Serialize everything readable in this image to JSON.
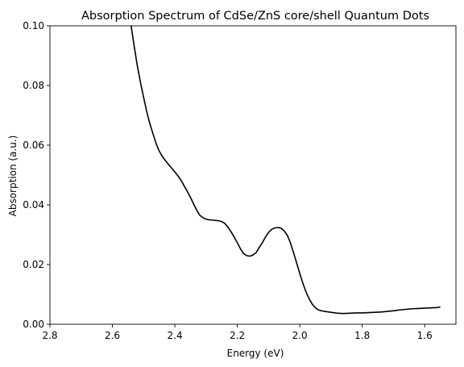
{
  "chart_data": {
    "type": "line",
    "title": "Absorption Spectrum of CdSe/ZnS core/shell Quantum Dots",
    "xlabel": "Energy (eV)",
    "ylabel": "Absorption (a.u.)",
    "xlim": [
      2.8,
      1.5
    ],
    "ylim": [
      0,
      0.1
    ],
    "x_reversed": true,
    "grid": false,
    "x_ticks": [
      2.8,
      2.6,
      2.4,
      2.2,
      2.0,
      1.8,
      1.6
    ],
    "x_tick_labels": [
      "2.8",
      "2.6",
      "2.4",
      "2.2",
      "2.0",
      "1.8",
      "1.6"
    ],
    "y_ticks": [
      0,
      0.02,
      0.04,
      0.06,
      0.08,
      0.1
    ],
    "y_tick_labels": [
      "0.00",
      "0.02",
      "0.04",
      "0.06",
      "0.08",
      "0.10"
    ],
    "line_color": "#000000",
    "series": [
      {
        "x": [
          2.54,
          2.53,
          2.52,
          2.51,
          2.5,
          2.49,
          2.48,
          2.47,
          2.46,
          2.45,
          2.44,
          2.43,
          2.42,
          2.41,
          2.4,
          2.39,
          2.38,
          2.37,
          2.36,
          2.35,
          2.34,
          2.33,
          2.32,
          2.31,
          2.3,
          2.29,
          2.28,
          2.27,
          2.26,
          2.25,
          2.24,
          2.23,
          2.22,
          2.21,
          2.2,
          2.19,
          2.18,
          2.17,
          2.16,
          2.15,
          2.14,
          2.13,
          2.12,
          2.11,
          2.1,
          2.09,
          2.08,
          2.07,
          2.06,
          2.05,
          2.04,
          2.03,
          2.02,
          2.01,
          2.0,
          1.99,
          1.98,
          1.97,
          1.96,
          1.95,
          1.94,
          1.93,
          1.92,
          1.9,
          1.88,
          1.86,
          1.84,
          1.82,
          1.8,
          1.78,
          1.76,
          1.74,
          1.72,
          1.7,
          1.68,
          1.66,
          1.64,
          1.62,
          1.6,
          1.58,
          1.56,
          1.55
        ],
        "y": [
          0.1,
          0.093,
          0.0865,
          0.081,
          0.076,
          0.0712,
          0.0672,
          0.0638,
          0.0605,
          0.058,
          0.0562,
          0.0548,
          0.0535,
          0.0523,
          0.051,
          0.0497,
          0.0482,
          0.0463,
          0.0445,
          0.0425,
          0.0403,
          0.0382,
          0.0365,
          0.0357,
          0.0352,
          0.035,
          0.0349,
          0.0348,
          0.0347,
          0.0344,
          0.0338,
          0.0325,
          0.031,
          0.0292,
          0.0273,
          0.0253,
          0.0237,
          0.023,
          0.0228,
          0.0232,
          0.024,
          0.0257,
          0.0273,
          0.0292,
          0.0308,
          0.0318,
          0.0323,
          0.0324,
          0.0322,
          0.0313,
          0.0298,
          0.0273,
          0.024,
          0.0205,
          0.017,
          0.0137,
          0.0108,
          0.0085,
          0.0067,
          0.0055,
          0.0048,
          0.0045,
          0.0043,
          0.004,
          0.0037,
          0.0036,
          0.0037,
          0.0038,
          0.0038,
          0.0039,
          0.004,
          0.0041,
          0.0043,
          0.0045,
          0.0048,
          0.005,
          0.0052,
          0.0053,
          0.0054,
          0.0055,
          0.0056,
          0.0058
        ]
      }
    ]
  }
}
